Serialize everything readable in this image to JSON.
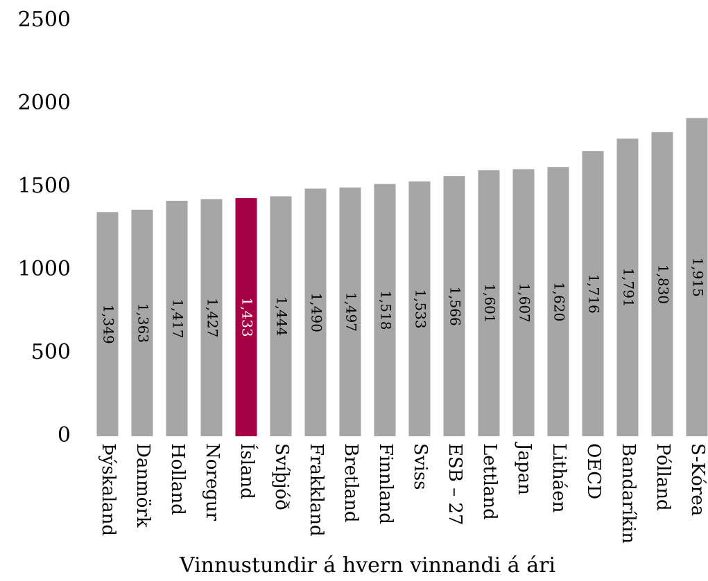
{
  "chart_data": {
    "type": "bar",
    "xlabel": "Vinnustundir á hvern vinnandi á ári",
    "categories": [
      "Þýskaland",
      "Danmörk",
      "Holland",
      "Noregur",
      "Ísland",
      "Svíþjóð",
      "Frakkland",
      "Bretland",
      "Finnland",
      "Sviss",
      "ESB – 27",
      "Lettland",
      "Japan",
      "Litháen",
      "OECD",
      "Bandaríkin",
      "Pólland",
      "S-Kórea"
    ],
    "values": [
      1349,
      1363,
      1417,
      1427,
      1433,
      1444,
      1490,
      1497,
      1518,
      1533,
      1566,
      1601,
      1607,
      1620,
      1716,
      1791,
      1830,
      1915
    ],
    "value_labels": [
      "1,349",
      "1,363",
      "1,417",
      "1,427",
      "1,433",
      "1,444",
      "1,490",
      "1,497",
      "1,518",
      "1,533",
      "1,566",
      "1,601",
      "1,607",
      "1,620",
      "1,716",
      "1,791",
      "1,830",
      "1,915"
    ],
    "colors": [
      "#a6a6a6",
      "#a6a6a6",
      "#a6a6a6",
      "#a6a6a6",
      "#a50044",
      "#a6a6a6",
      "#a6a6a6",
      "#a6a6a6",
      "#a6a6a6",
      "#a6a6a6",
      "#a6a6a6",
      "#a6a6a6",
      "#a6a6a6",
      "#a6a6a6",
      "#a6a6a6",
      "#a6a6a6",
      "#a6a6a6",
      "#a6a6a6"
    ],
    "value_label_colors": [
      "#000000",
      "#000000",
      "#000000",
      "#000000",
      "#ffffff",
      "#000000",
      "#000000",
      "#000000",
      "#000000",
      "#000000",
      "#000000",
      "#000000",
      "#000000",
      "#000000",
      "#000000",
      "#000000",
      "#000000",
      "#000000"
    ],
    "ylim": [
      0,
      2500
    ],
    "yticks": [
      0,
      500,
      1000,
      1500,
      2000,
      2500
    ],
    "grid": false
  }
}
